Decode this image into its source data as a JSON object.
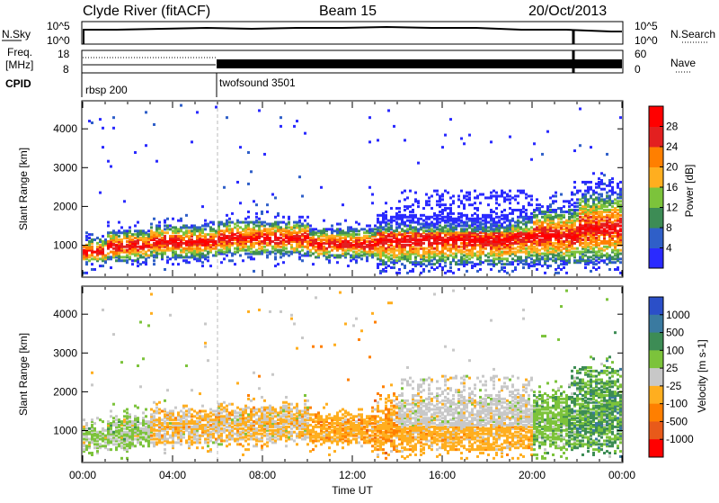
{
  "header": {
    "station": "Clyde River (fitACF)",
    "beam": "Beam 15",
    "date": "20/Oct/2013"
  },
  "status_panels": {
    "nsky": {
      "label": "N.Sky",
      "ticks": [
        "10^5",
        "10^0"
      ],
      "right_ticks": [
        "10^5",
        "10^0"
      ],
      "right_label": "N.Search",
      "right_legend_line": "dotted"
    },
    "freq": {
      "label_line1": "Freq.",
      "label_line2": "[MHz]",
      "ticks": [
        "18",
        "8"
      ],
      "right_ticks": [
        "60",
        "0"
      ],
      "right_label": "Nave",
      "right_legend_line": "dotted"
    },
    "cpid": {
      "label": "CPID",
      "segments": [
        {
          "name": "rbsp 200",
          "start_hour": 0
        },
        {
          "name": "twofsound 3501",
          "start_hour": 6
        }
      ]
    }
  },
  "chart_data": [
    {
      "type": "heatmap",
      "panel": "power",
      "ylabel": "Slant Range [km]",
      "yticks": [
        1000,
        2000,
        3000,
        4000
      ],
      "ylim": [
        200,
        4700
      ],
      "xlim": [
        0,
        24
      ],
      "xticks": [
        "00:00",
        "04:00",
        "08:00",
        "12:00",
        "16:00",
        "20:00",
        "00:00"
      ],
      "colorbar_label": "Power [dB]",
      "colorbar_ticks": [
        "4",
        "8",
        "12",
        "16",
        "20",
        "24",
        "28"
      ],
      "colors": [
        "#2a2aff",
        "#2f5fc8",
        "#3d8c55",
        "#7cc33b",
        "#ffae1f",
        "#ff7f00",
        "#e32020",
        "#ff0000"
      ]
    },
    {
      "type": "heatmap",
      "panel": "velocity",
      "ylabel": "Slant Range [km]",
      "yticks": [
        1000,
        2000,
        3000,
        4000
      ],
      "ylim": [
        200,
        4700
      ],
      "xlim": [
        0,
        24
      ],
      "xticks": [
        "00:00",
        "04:00",
        "08:00",
        "12:00",
        "16:00",
        "20:00",
        "00:00"
      ],
      "xlabel": "Time UT",
      "colorbar_label": "Velocity [m s-1]",
      "colorbar_ticks": [
        "1000",
        "500",
        "100",
        "25",
        "-25",
        "-100",
        "-500",
        "-1000"
      ],
      "colors": [
        "#2b4fc8",
        "#3a7aa0",
        "#3d8c55",
        "#7cc33b",
        "#c8c8c8",
        "#ffae1f",
        "#ff7f00",
        "#e85a1a",
        "#ff0000"
      ]
    }
  ]
}
